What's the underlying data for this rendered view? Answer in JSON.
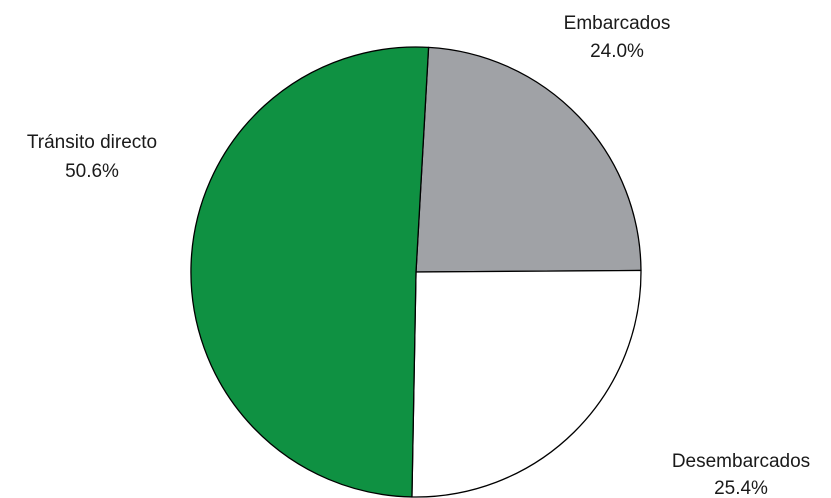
{
  "chart_data": {
    "type": "pie",
    "title": "",
    "start_angle_deg": 86.8,
    "direction": "clockwise",
    "legend": "none",
    "slices": [
      {
        "name": "Embarcados",
        "label": "Embarcados",
        "pct_label": "24.0%",
        "value": 24.0,
        "color": "#a0a2a6"
      },
      {
        "name": "Desembarcados",
        "label": "Desembarcados",
        "pct_label": "25.4%",
        "value": 25.4,
        "color": "#ffffff"
      },
      {
        "name": "Tránsito directo",
        "label": "Tránsito directo",
        "pct_label": "50.6%",
        "value": 50.6,
        "color": "#0f9142"
      }
    ]
  }
}
